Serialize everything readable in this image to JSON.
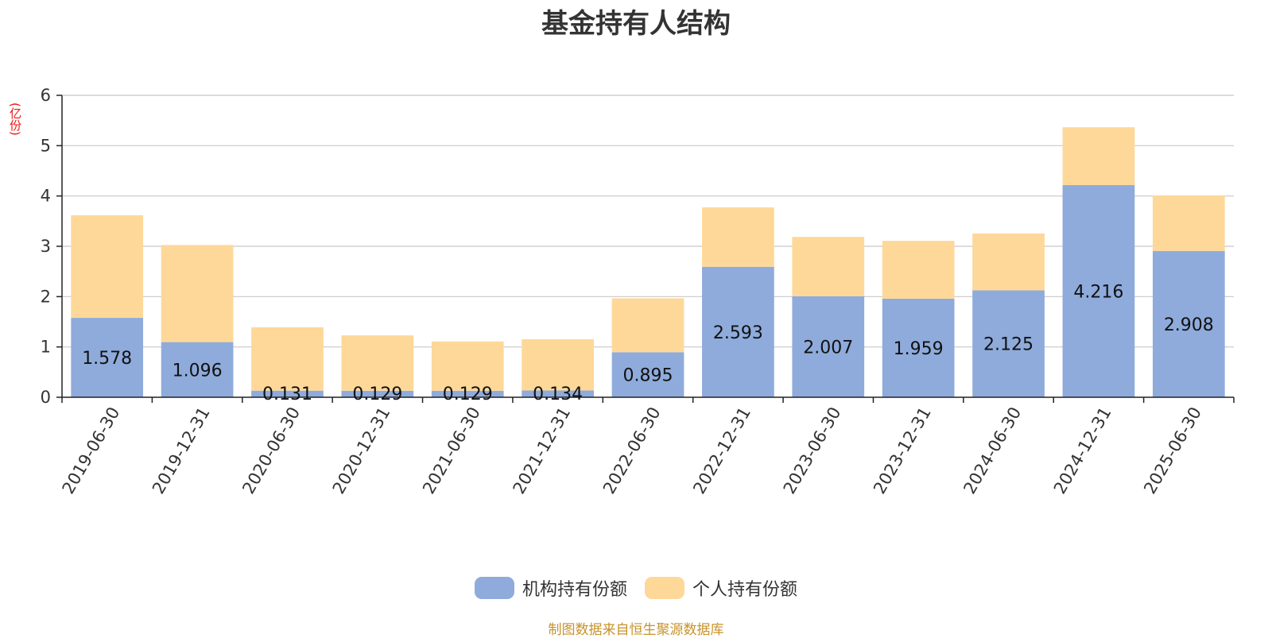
{
  "colors": {
    "institutional": "#8eabdb",
    "individual": "#fed898",
    "grid": "#c8c8c8",
    "axis": "#222222",
    "unit": "#ee1111",
    "source": "#c7932b"
  },
  "chart_data": {
    "type": "bar",
    "stacked": true,
    "title": "基金持有人结构",
    "ylabel": "(亿份)",
    "ylim": [
      0,
      6
    ],
    "yticks": [
      0,
      1,
      2,
      3,
      4,
      5,
      6
    ],
    "grid": true,
    "legend_position": "bottom",
    "categories": [
      "2019-06-30",
      "2019-12-31",
      "2020-06-30",
      "2020-12-31",
      "2021-06-30",
      "2021-12-31",
      "2022-06-30",
      "2022-12-31",
      "2023-06-30",
      "2023-12-31",
      "2024-06-30",
      "2024-12-31",
      "2025-06-30"
    ],
    "series": [
      {
        "name": "机构持有份额",
        "values": [
          1.578,
          1.096,
          0.131,
          0.129,
          0.129,
          0.134,
          0.895,
          2.593,
          2.007,
          1.959,
          2.125,
          4.216,
          2.908
        ],
        "labels_shown": true
      },
      {
        "name": "个人持有份额",
        "values": [
          2.04,
          1.93,
          1.26,
          1.1,
          0.98,
          1.02,
          1.07,
          1.18,
          1.18,
          1.15,
          1.13,
          1.15,
          1.1
        ],
        "labels_shown": false
      }
    ]
  },
  "source_text": "制图数据来自恒生聚源数据库"
}
